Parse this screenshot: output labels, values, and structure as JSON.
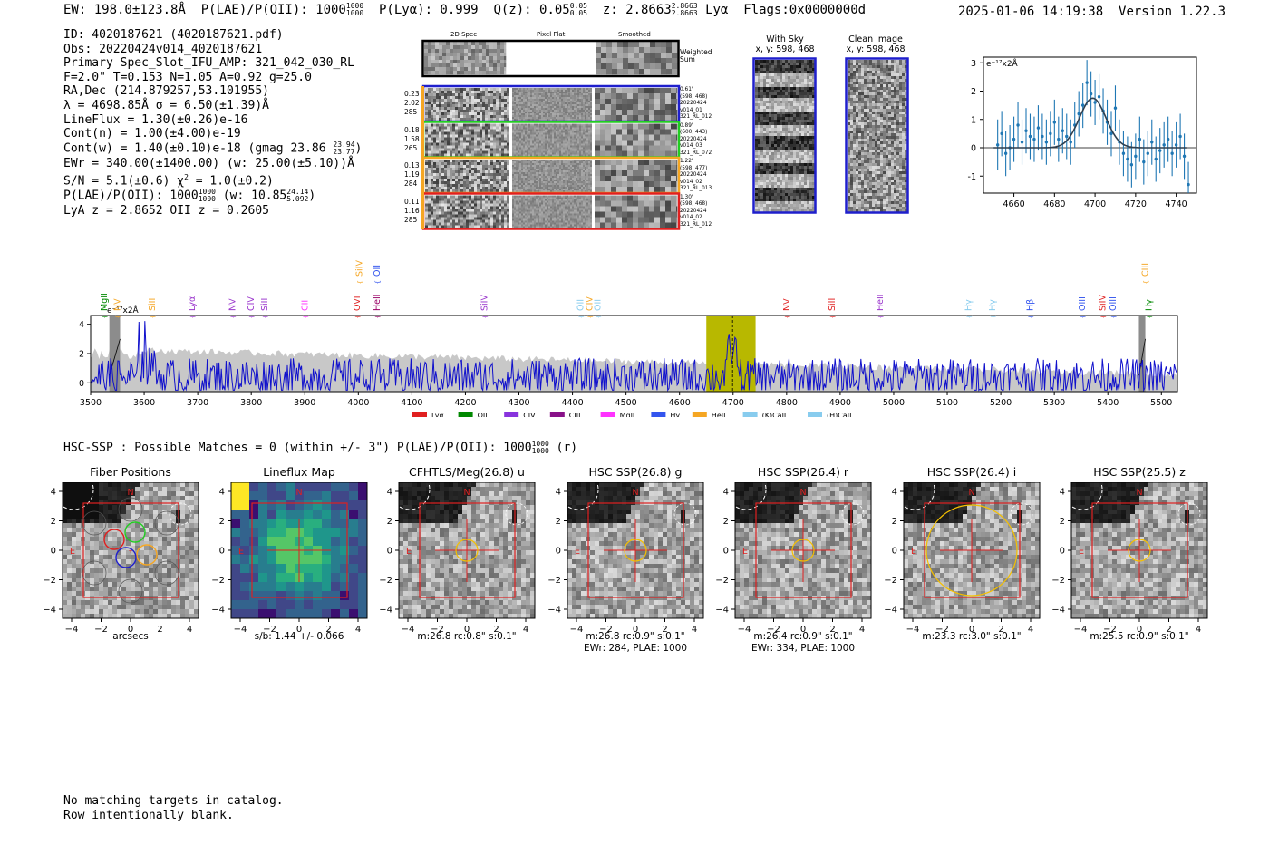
{
  "header": {
    "ew": "EW: 198.0±123.8Å",
    "plae_prefix": "P(LAE)/P(OII): 1000",
    "plae_hi": "1000",
    "plae_lo": "1000",
    "plya": "P(Lyα): 0.999",
    "qz_prefix": "Q(z): 0.05",
    "qz_hi": "0.05",
    "qz_lo": "0.05",
    "z_prefix": "z: 2.8663",
    "z_hi": "2.8663",
    "z_lo": "2.8663",
    "z_suffix": "Lyα",
    "flags": "Flags:0x0000000d",
    "timestamp": "2025-01-06 14:19:38",
    "version": "Version 1.22.3"
  },
  "info": {
    "id": "ID: 4020187621 (4020187621.pdf)",
    "obs": "Obs: 20220424v014_4020187621",
    "primary": "Primary Spec_Slot_IFU_AMP: 321_042_030_RL",
    "fparams": "F=2.0\"  T=0.153  N=1.05  A=0.92  g=25.0",
    "radec": "RA,Dec (214.879257,53.101955)",
    "lambda": "λ = 4698.85Å   σ = 6.50(±1.39)Å",
    "lineflux": "LineFlux = 1.30(±0.26)e-16",
    "contn": "Cont(n) = 1.00(±4.00)e-19",
    "contw_prefix": "Cont(w) = 1.40(±0.10)e-18 (gmag 23.86",
    "contw_hi": "23.94",
    "contw_lo": "23.77",
    "contw_suffix": ")",
    "ewr": "EWr = 340.00(±1400.00) (w: 25.00(±5.10))Å",
    "sn_prefix": "S/N = 5.1(±0.6)  χ",
    "sn_sup": "2",
    "sn_suffix": " = 1.0(±0.2)",
    "plae_prefix": "P(LAE)/P(OII): 1000",
    "plae_hi": "1000",
    "plae_lo": "1000",
    "plae_mid": " (w: 10.85",
    "plae_w_hi": "24.14",
    "plae_w_lo": "5.092",
    "plae_suffix": ")",
    "lyaz": "LyA z = 2.8652  OII z = 0.2605"
  },
  "cutouts": {
    "headers": [
      "2D Spec",
      "Pixel Flat",
      "Smoothed"
    ],
    "weighted_label": "Weighted Sum",
    "rows": [
      {
        "stats": [
          "0.23",
          "2.02",
          "285"
        ],
        "color": "#1f1fcc",
        "meta": [
          "0.61\"",
          "(598, 468)",
          "20220424",
          "v014_01",
          "321_RL_012"
        ]
      },
      {
        "stats": [
          "0.18",
          "1.58",
          "265"
        ],
        "color": "#22cc22",
        "meta": [
          "0.89\"",
          "(600, 443)",
          "20220424",
          "v014_03",
          "321_RL_072"
        ]
      },
      {
        "stats": [
          "0.13",
          "1.19",
          "284"
        ],
        "color": "#f5a623",
        "meta": [
          "1.22\"",
          "(598, 477)",
          "20220424",
          "v014_02",
          "321_RL_013"
        ]
      },
      {
        "stats": [
          "0.11",
          "1.16",
          "285"
        ],
        "color": "#e02020",
        "meta": [
          "1.30\"",
          "(598, 468)",
          "20220424",
          "v014_02",
          "321_RL_012"
        ]
      }
    ]
  },
  "sky": {
    "with_sky_title": "With Sky",
    "with_sky_coords": "x, y: 598, 468",
    "clean_title": "Clean Image",
    "clean_coords": "x, y: 598, 468"
  },
  "colors": {
    "spectrum_blue": "#1010cc",
    "highlight_yellow": "#b8b800",
    "fit_curve": "#2f3f4f",
    "err_blue": "#1f77b4"
  },
  "fit_chart": {
    "type": "scatter",
    "ylabel_unit": "e⁻¹⁷x2Å",
    "xlim": [
      4645,
      4750
    ],
    "ylim": [
      -1.6,
      3.2
    ],
    "xticks": [
      4660,
      4680,
      4700,
      4720,
      4740
    ],
    "yticks": [
      -1,
      0,
      1,
      2,
      3
    ],
    "x": [
      4652,
      4654,
      4656,
      4658,
      4660,
      4662,
      4664,
      4666,
      4668,
      4670,
      4672,
      4674,
      4676,
      4678,
      4680,
      4682,
      4684,
      4686,
      4688,
      4690,
      4692,
      4694,
      4696,
      4698,
      4700,
      4702,
      4704,
      4706,
      4708,
      4710,
      4712,
      4714,
      4716,
      4718,
      4720,
      4722,
      4724,
      4726,
      4728,
      4730,
      4732,
      4734,
      4736,
      4738,
      4740,
      4742,
      4744,
      4746
    ],
    "y": [
      0.1,
      0.5,
      -0.2,
      0.0,
      0.3,
      0.8,
      0.2,
      0.6,
      0.4,
      0.3,
      0.7,
      0.4,
      0.2,
      0.5,
      0.9,
      0.3,
      0.6,
      0.4,
      0.2,
      0.8,
      1.2,
      1.5,
      2.3,
      1.9,
      1.6,
      1.8,
      1.3,
      0.9,
      0.5,
      1.4,
      0.2,
      -0.2,
      -0.4,
      -0.6,
      -0.3,
      0.3,
      -0.5,
      -0.2,
      0.2,
      -0.4,
      -0.1,
      0.1,
      0.3,
      -0.2,
      0.1,
      0.4,
      -0.3,
      -1.3
    ],
    "err": [
      0.9,
      0.8,
      0.8,
      0.8,
      0.8,
      0.8,
      0.8,
      0.8,
      0.8,
      0.8,
      0.8,
      0.8,
      0.8,
      0.8,
      0.8,
      0.8,
      0.8,
      0.8,
      0.8,
      0.8,
      0.8,
      0.8,
      0.8,
      0.8,
      0.8,
      0.8,
      0.8,
      0.8,
      0.8,
      0.8,
      0.8,
      0.8,
      0.8,
      0.8,
      0.8,
      0.8,
      0.8,
      0.8,
      0.8,
      0.8,
      0.8,
      0.8,
      0.8,
      0.8,
      0.8,
      0.8,
      0.8,
      0.8
    ],
    "gauss": {
      "amp": 1.75,
      "center": 4698.85,
      "sigma": 6.5,
      "base": 0.0
    }
  },
  "full_spec": {
    "type": "line",
    "ylabel_unit": "e⁻¹⁷x2Å",
    "xlim": [
      3500,
      5530
    ],
    "ylim": [
      -0.6,
      4.6
    ],
    "xticks": [
      3500,
      3600,
      3700,
      3800,
      3900,
      4000,
      4100,
      4200,
      4300,
      4400,
      4500,
      4600,
      4700,
      4800,
      4900,
      5000,
      5100,
      5200,
      5300,
      5400,
      5500
    ],
    "yticks": [
      0,
      2,
      4
    ],
    "highlight": [
      4650,
      4742
    ],
    "marker_line": 4699,
    "gray_bands": [
      [
        3535,
        3555
      ],
      [
        5458,
        5470
      ]
    ],
    "lines": [
      {
        "label": "MgII",
        "wave": 3525,
        "color": "#008800",
        "row": 2
      },
      {
        "label": "NV",
        "wave": 3550,
        "color": "#f5a623",
        "row": 2
      },
      {
        "label": "SiII",
        "wave": 3615,
        "color": "#f5a623",
        "row": 1
      },
      {
        "label": "Lyα",
        "wave": 3690,
        "color": "#9933cc",
        "row": 1
      },
      {
        "label": "NV",
        "wave": 3765,
        "color": "#9933cc",
        "row": 1
      },
      {
        "label": "CIV",
        "wave": 3800,
        "color": "#9933cc",
        "row": 1
      },
      {
        "label": "SiII",
        "wave": 3825,
        "color": "#9933cc",
        "row": 1
      },
      {
        "label": "CII",
        "wave": 3900,
        "color": "#ff33ff",
        "row": 1
      },
      {
        "label": "OVI",
        "wave": 3998,
        "color": "#e02020",
        "row": 1
      },
      {
        "label": "SiIV",
        "wave": 4002,
        "color": "#f5a623",
        "row": 0
      },
      {
        "label": "OII",
        "wave": 4035,
        "color": "#3355ee",
        "row": 0
      },
      {
        "label": "HeII",
        "wave": 4035,
        "color": "#990066",
        "row": 1
      },
      {
        "label": "SiIV",
        "wave": 4236,
        "color": "#9933cc",
        "row": 1
      },
      {
        "label": "OII",
        "wave": 4415,
        "color": "#88ccee",
        "row": 1
      },
      {
        "label": "CIV",
        "wave": 4432,
        "color": "#f5a623",
        "row": 1
      },
      {
        "label": "OII",
        "wave": 4447,
        "color": "#88ccee",
        "row": 1
      },
      {
        "label": "NV",
        "wave": 4800,
        "color": "#e02020",
        "row": 1
      },
      {
        "label": "SiII",
        "wave": 4885,
        "color": "#e02020",
        "row": 1
      },
      {
        "label": "HeII",
        "wave": 4975,
        "color": "#9933cc",
        "row": 1
      },
      {
        "label": "Hγ",
        "wave": 5140,
        "color": "#88ccee",
        "row": 1
      },
      {
        "label": "Hγ",
        "wave": 5185,
        "color": "#88ccee",
        "row": 1
      },
      {
        "label": "Hβ",
        "wave": 5255,
        "color": "#3355ee",
        "row": 1
      },
      {
        "label": "OIII",
        "wave": 5352,
        "color": "#3355ee",
        "row": 1
      },
      {
        "label": "SiIV",
        "wave": 5390,
        "color": "#e02020",
        "row": 1
      },
      {
        "label": "OIII",
        "wave": 5410,
        "color": "#3355ee",
        "row": 1
      },
      {
        "label": "CIII",
        "wave": 5470,
        "color": "#f5a623",
        "row": 0
      },
      {
        "label": "Hγ",
        "wave": 5477,
        "color": "#008800",
        "row": 1
      }
    ],
    "legend": [
      {
        "label": "Lyα",
        "color": "#e02020"
      },
      {
        "label": "OII",
        "color": "#008800"
      },
      {
        "label": "CIV",
        "color": "#8833dd"
      },
      {
        "label": "CIII",
        "color": "#881188"
      },
      {
        "label": "MgII",
        "color": "#ff33ff"
      },
      {
        "label": "Hγ",
        "color": "#3355ee"
      },
      {
        "label": "HeII",
        "color": "#f5a623"
      },
      {
        "label": "(K)CaII",
        "color": "#88ccee"
      },
      {
        "label": "(H)CaII",
        "color": "#88ccee"
      }
    ]
  },
  "hsc_line": {
    "prefix": "HSC-SSP : Possible Matches = 0 (within +/- 3\")  P(LAE)/P(OII): 1000",
    "hi": "1000",
    "lo": "1000",
    "suffix": " (r)"
  },
  "panels": [
    {
      "title": "Fiber Positions",
      "caption1": "arcsecs",
      "caption2": ""
    },
    {
      "title": "Lineflux Map",
      "caption1": "s/b: 1.44 +/- 0.066",
      "caption2": ""
    },
    {
      "title": "CFHTLS/Meg(26.8) u",
      "caption1": "m:26.8 rc:0.8\"  s:0.1\"",
      "caption2": ""
    },
    {
      "title": "HSC SSP(26.8) g",
      "caption1": "m:26.8 rc:0.9\"  s:0.1\"",
      "caption2": "EWr: 284, PLAE: 1000"
    },
    {
      "title": "HSC SSP(26.4) r",
      "caption1": "m:26.4 rc:0.9\"  s:0.1\"",
      "caption2": "EWr: 334, PLAE: 1000"
    },
    {
      "title": "HSC SSP(26.4) i",
      "caption1": "m:23.3 rc:3.0\"  s:0.1\"",
      "caption2": ""
    },
    {
      "title": "HSC SSP(25.5) z",
      "caption1": "m:25.5 rc:0.9\"  s:0.1\"",
      "caption2": ""
    }
  ],
  "panel_axis": {
    "xticks": [
      "−4",
      "−2",
      "0",
      "2",
      "4"
    ],
    "yticks": [
      "4",
      "2",
      "0",
      "−2",
      "−4"
    ],
    "north": "N",
    "east": "E"
  },
  "footer": {
    "line1": "No matching targets in catalog.",
    "line2": "Row intentionally blank."
  }
}
